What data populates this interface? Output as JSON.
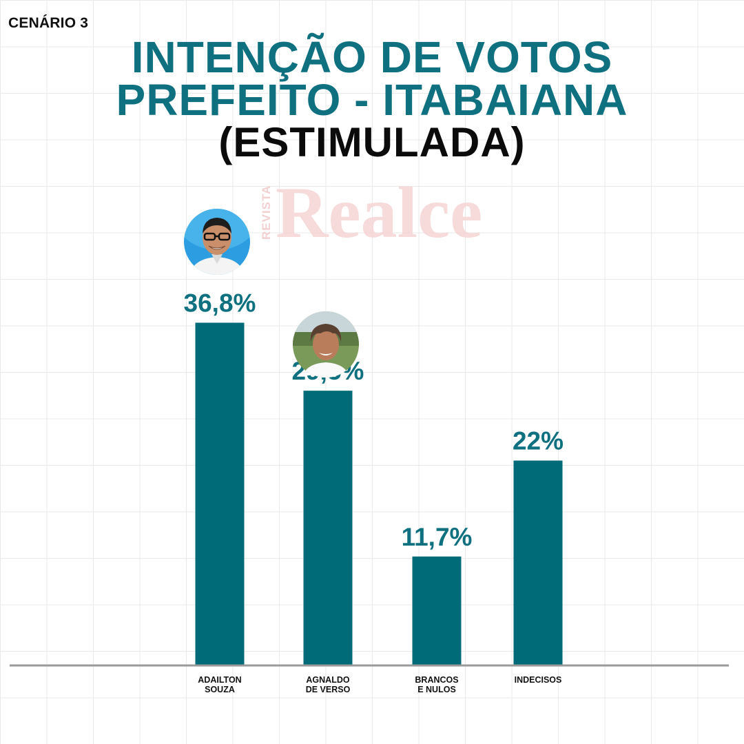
{
  "scenario_label": "CENÁRIO 3",
  "title_lines": [
    "INTENÇÃO DE VOTOS",
    "PREFEITO - ITABAIANA",
    "(ESTIMULADA)"
  ],
  "watermark": {
    "small": "REVISTA",
    "big": "Realce"
  },
  "colors": {
    "title": "#0f7080",
    "bar": "#006b78",
    "value_label": "#0f7080",
    "baseline": "#9a9a9a"
  },
  "chart_data": {
    "type": "bar",
    "categories": [
      [
        "ADAILTON",
        "SOUZA"
      ],
      [
        "AGNALDO",
        "DE VERSO"
      ],
      [
        "BRANCOS",
        "E NULOS"
      ],
      [
        "INDECISOS"
      ]
    ],
    "values": [
      36.8,
      29.5,
      11.7,
      22
    ],
    "value_labels": [
      "36,8%",
      "29,5%",
      "11,7%",
      "22%"
    ],
    "ylim": [
      0,
      40
    ],
    "grid": true,
    "legend": "none"
  }
}
